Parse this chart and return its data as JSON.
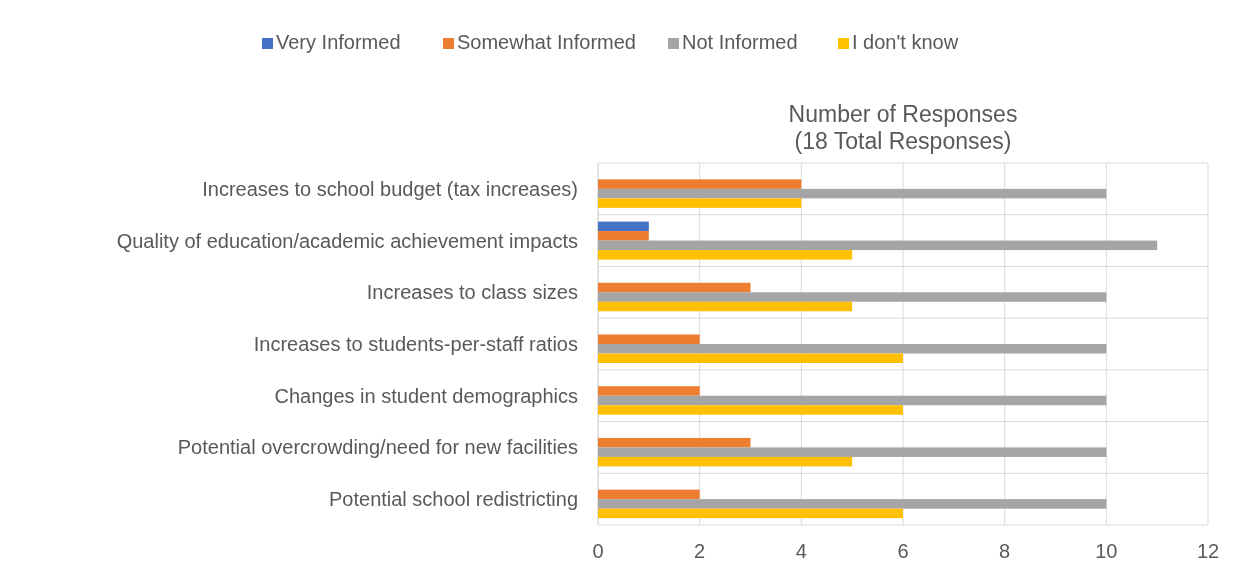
{
  "chart_data": {
    "type": "bar",
    "orientation": "horizontal",
    "title": "Number of Responses\n(18 Total Responses)",
    "categories": [
      "Increases to school budget (tax increases)",
      "Quality of education/academic achievement impacts",
      "Increases to class sizes",
      "Increases to students-per-staff ratios",
      "Changes in student demographics",
      "Potential overcrowding/need for new facilities",
      "Potential school redistricting"
    ],
    "series": [
      {
        "name": "Very Informed",
        "color": "#4472c4",
        "values": [
          0,
          1,
          0,
          0,
          0,
          0,
          0
        ]
      },
      {
        "name": "Somewhat Informed",
        "color": "#ed7d31",
        "values": [
          4,
          1,
          3,
          2,
          2,
          3,
          2
        ]
      },
      {
        "name": "Not Informed",
        "color": "#a5a5a5",
        "values": [
          10,
          11,
          10,
          10,
          10,
          10,
          10
        ]
      },
      {
        "name": "I don't know",
        "color": "#ffc000",
        "values": [
          4,
          5,
          5,
          6,
          6,
          5,
          6
        ]
      }
    ],
    "xlim": [
      0,
      12
    ],
    "xticks": [
      0,
      2,
      4,
      6,
      8,
      10,
      12
    ],
    "grid": true,
    "legend": "top"
  }
}
